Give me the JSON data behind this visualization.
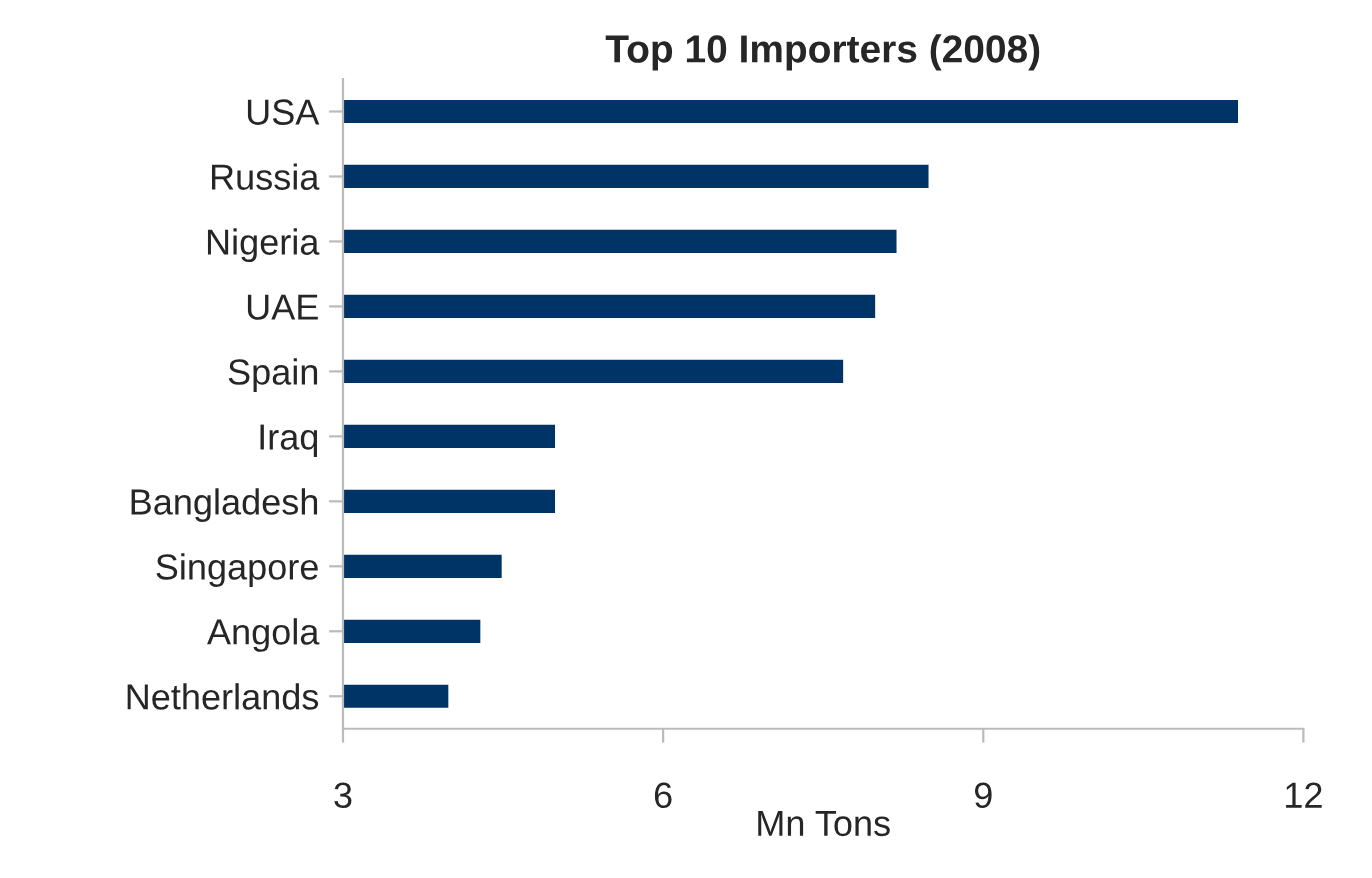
{
  "chart_data": {
    "type": "bar",
    "orientation": "horizontal",
    "title": "Top 10 Importers (2008)",
    "xlabel": "Mn Tons",
    "categories": [
      "USA",
      "Russia",
      "Nigeria",
      "UAE",
      "Spain",
      "Iraq",
      "Bangladesh",
      "Singapore",
      "Angola",
      "Netherlands"
    ],
    "values": [
      11.4,
      8.5,
      8.2,
      8.0,
      7.7,
      5.0,
      5.0,
      4.5,
      4.3,
      4.0
    ],
    "color": "#003366",
    "xlim": [
      3,
      12
    ],
    "xticks": [
      3,
      6,
      9,
      12
    ],
    "grid": false,
    "legend": false
  }
}
